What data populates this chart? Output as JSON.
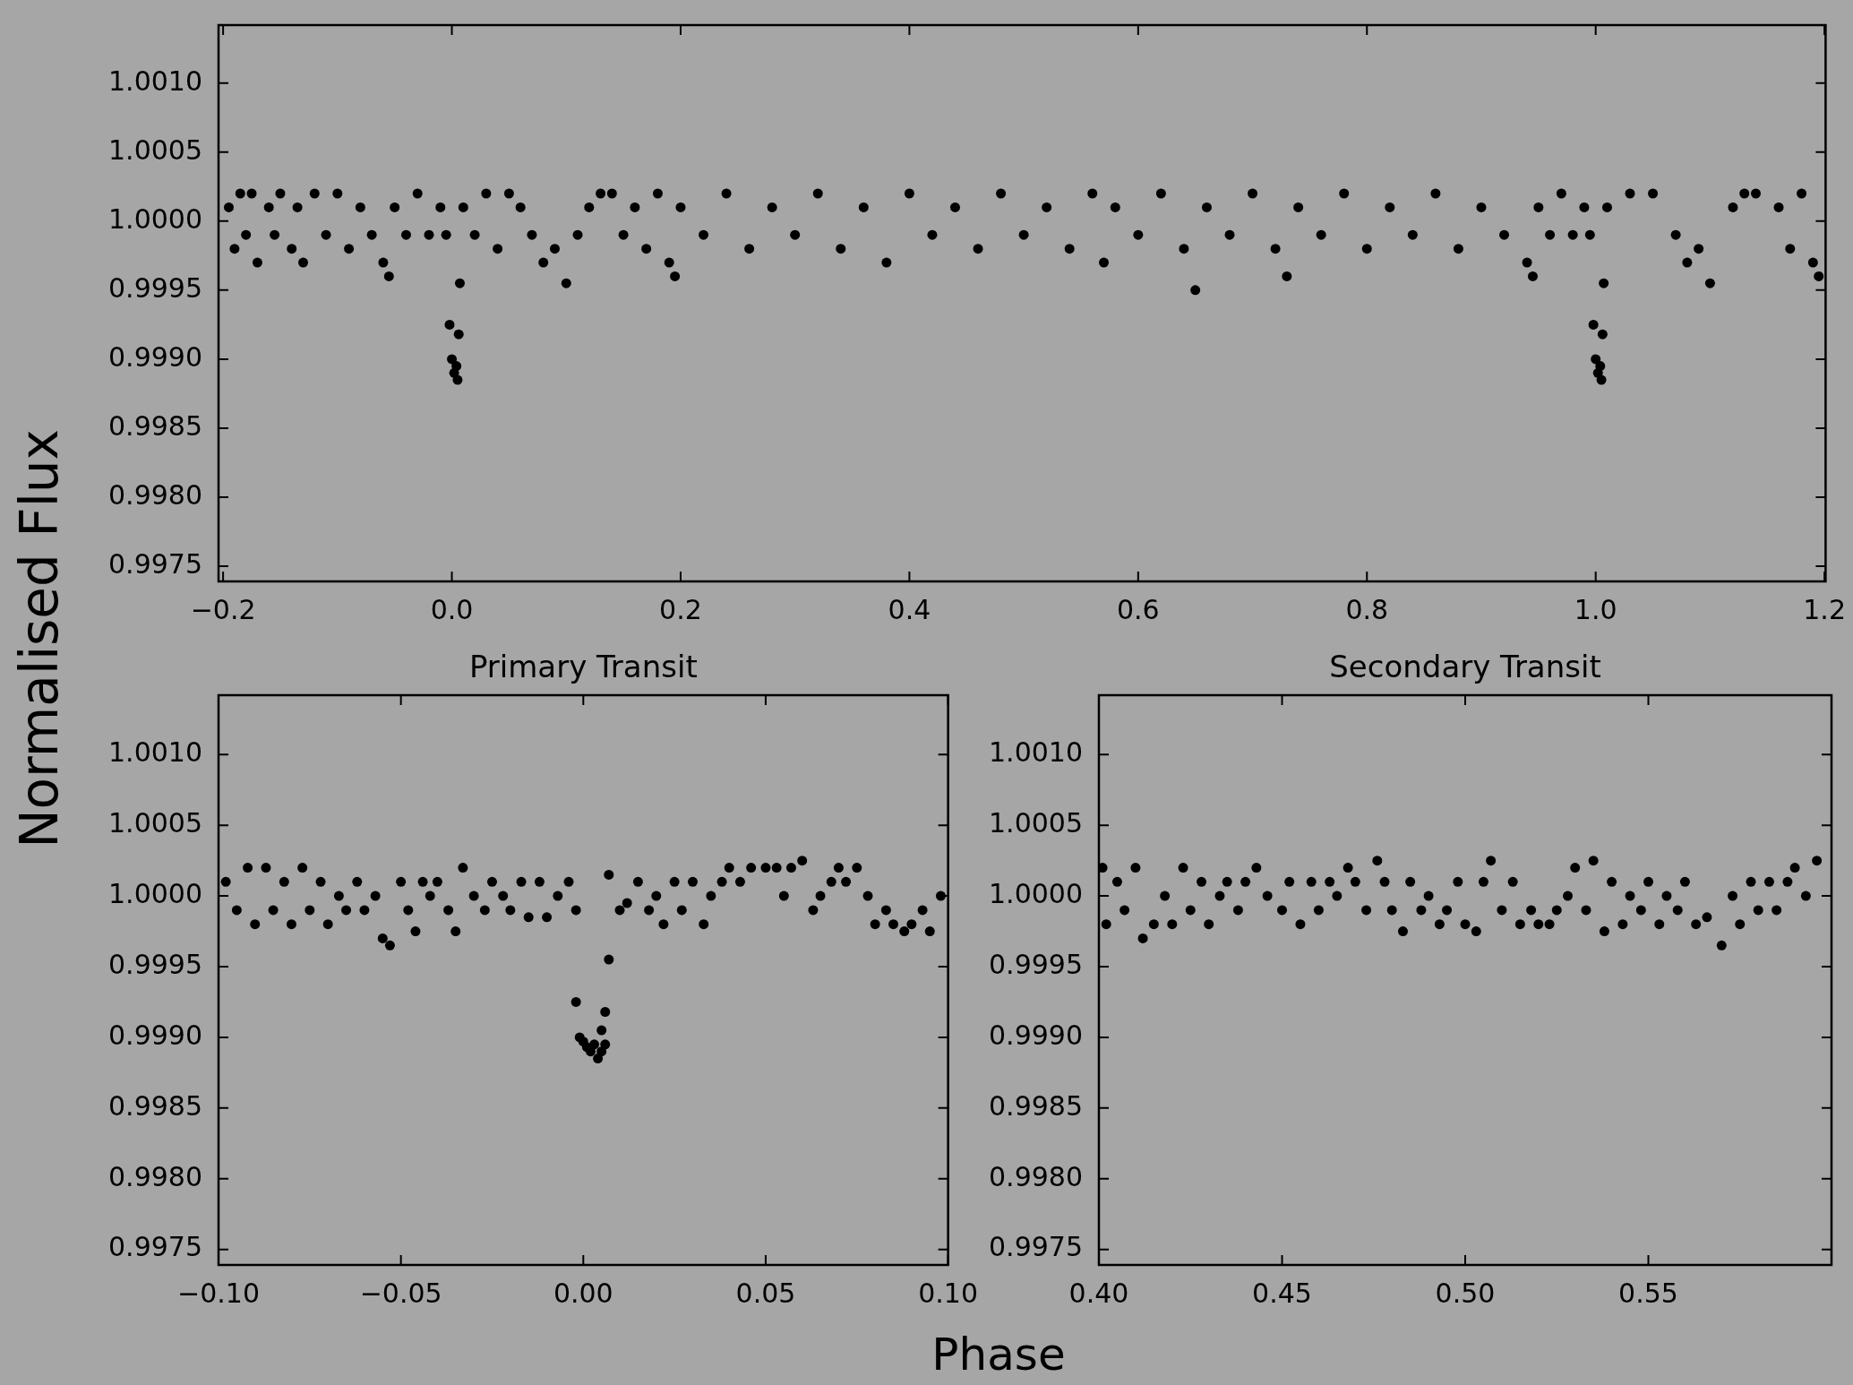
{
  "chart_data": [
    {
      "type": "scatter",
      "ylabel": "Normalised Flux",
      "color": "#000000",
      "marker": "circle",
      "grid": false,
      "xlim": [
        -0.204,
        1.201
      ],
      "ylim": [
        0.99739,
        1.00142
      ],
      "xticks": [
        {
          "value": -0.2,
          "label": "−0.2"
        },
        {
          "value": 0,
          "label": "0.0"
        },
        {
          "value": 0.2,
          "label": "0.2"
        },
        {
          "value": 0.4,
          "label": "0.4"
        },
        {
          "value": 0.6,
          "label": "0.6"
        },
        {
          "value": 0.8,
          "label": "0.8"
        },
        {
          "value": 1,
          "label": "1.0"
        },
        {
          "value": 1.2,
          "label": "1.2"
        }
      ],
      "yticks": [
        {
          "value": 0.9975,
          "label": "0.9975"
        },
        {
          "value": 0.998,
          "label": "0.9980"
        },
        {
          "value": 0.9985,
          "label": "0.9985"
        },
        {
          "value": 0.999,
          "label": "0.9990"
        },
        {
          "value": 0.9995,
          "label": "0.9995"
        },
        {
          "value": 1,
          "label": "1.0000"
        },
        {
          "value": 1.0005,
          "label": "1.0005"
        },
        {
          "value": 1.001,
          "label": "1.0010"
        }
      ],
      "x": [
        -0.195,
        -0.19,
        -0.185,
        -0.18,
        -0.175,
        -0.17,
        -0.16,
        -0.155,
        -0.15,
        -0.14,
        -0.135,
        -0.13,
        -0.12,
        -0.11,
        -0.1,
        -0.09,
        -0.08,
        -0.07,
        -0.06,
        -0.055,
        -0.05,
        -0.04,
        -0.03,
        -0.02,
        -0.01,
        -0.005,
        -0.002,
        0,
        0.002,
        0.004,
        0.005,
        0.006,
        0.007,
        0.01,
        0.02,
        0.03,
        0.04,
        0.05,
        0.06,
        0.07,
        0.08,
        0.09,
        0.1,
        0.11,
        0.12,
        0.13,
        0.14,
        0.15,
        0.16,
        0.17,
        0.18,
        0.19,
        0.195,
        0.2,
        0.22,
        0.24,
        0.26,
        0.28,
        0.3,
        0.32,
        0.34,
        0.36,
        0.38,
        0.4,
        0.42,
        0.44,
        0.46,
        0.48,
        0.5,
        0.52,
        0.54,
        0.56,
        0.57,
        0.58,
        0.6,
        0.62,
        0.64,
        0.65,
        0.66,
        0.68,
        0.7,
        0.72,
        0.73,
        0.74,
        0.76,
        0.78,
        0.8,
        0.82,
        0.84,
        0.86,
        0.88,
        0.9,
        0.92,
        0.94,
        0.945,
        0.95,
        0.96,
        0.97,
        0.98,
        0.99,
        0.995,
        0.998,
        1,
        1.002,
        1.004,
        1.005,
        1.006,
        1.007,
        1.01,
        1.03,
        1.05,
        1.07,
        1.08,
        1.09,
        1.1,
        1.12,
        1.13,
        1.14,
        1.16,
        1.17,
        1.18,
        1.19,
        1.195
      ],
      "values": [
        1.0001,
        0.9998,
        1.0002,
        0.9999,
        1.0002,
        0.9997,
        1.0001,
        0.9999,
        1.0002,
        0.9998,
        1.0001,
        0.9997,
        1.0002,
        0.9999,
        1.0002,
        0.9998,
        1.0001,
        0.9999,
        0.9997,
        0.9996,
        1.0001,
        0.9999,
        1.0002,
        0.9999,
        1.0001,
        0.9999,
        0.99925,
        0.999,
        0.9989,
        0.99895,
        0.99885,
        0.99918,
        0.99955,
        1.0001,
        0.9999,
        1.0002,
        0.9998,
        1.0002,
        1.0001,
        0.9999,
        0.9997,
        0.9998,
        0.99955,
        0.9999,
        1.0001,
        1.0002,
        1.0002,
        0.9999,
        1.0001,
        0.9998,
        1.0002,
        0.9997,
        0.9996,
        1.0001,
        0.9999,
        1.0002,
        0.9998,
        1.0001,
        0.9999,
        1.0002,
        0.9998,
        1.0001,
        0.9997,
        1.0002,
        0.9999,
        1.0001,
        0.9998,
        1.0002,
        0.9999,
        1.0001,
        0.9998,
        1.0002,
        0.9997,
        1.0001,
        0.9999,
        1.0002,
        0.9998,
        0.9995,
        1.0001,
        0.9999,
        1.0002,
        0.9998,
        0.9996,
        1.0001,
        0.9999,
        1.0002,
        0.9998,
        1.0001,
        0.9999,
        1.0002,
        0.9998,
        1.0001,
        0.9999,
        0.9997,
        0.9996,
        1.0001,
        0.9999,
        1.0002,
        0.9999,
        1.0001,
        0.9999,
        0.99925,
        0.999,
        0.9989,
        0.99895,
        0.99885,
        0.99918,
        0.99955,
        1.0001,
        1.0002,
        1.0002,
        0.9999,
        0.9997,
        0.9998,
        0.99955,
        1.0001,
        1.0002,
        1.0002,
        1.0001,
        0.9998,
        1.0002,
        0.9997,
        0.9996
      ]
    },
    {
      "type": "scatter",
      "title": "Primary Transit",
      "xlabel": "Phase",
      "color": "#000000",
      "marker": "circle",
      "grid": false,
      "xlim": [
        -0.1,
        0.1
      ],
      "ylim": [
        0.99739,
        1.00142
      ],
      "xticks": [
        {
          "value": -0.1,
          "label": "−0.10"
        },
        {
          "value": -0.05,
          "label": "−0.05"
        },
        {
          "value": 0,
          "label": "0.00"
        },
        {
          "value": 0.05,
          "label": "0.05"
        },
        {
          "value": 0.1,
          "label": "0.10"
        }
      ],
      "yticks": [
        {
          "value": 0.9975,
          "label": "0.9975"
        },
        {
          "value": 0.998,
          "label": "0.9980"
        },
        {
          "value": 0.9985,
          "label": "0.9985"
        },
        {
          "value": 0.999,
          "label": "0.9990"
        },
        {
          "value": 0.9995,
          "label": "0.9995"
        },
        {
          "value": 1,
          "label": "1.0000"
        },
        {
          "value": 1.0005,
          "label": "1.0005"
        },
        {
          "value": 1.001,
          "label": "1.0010"
        }
      ],
      "x": [
        -0.098,
        -0.095,
        -0.092,
        -0.09,
        -0.087,
        -0.085,
        -0.082,
        -0.08,
        -0.077,
        -0.075,
        -0.072,
        -0.07,
        -0.067,
        -0.065,
        -0.062,
        -0.06,
        -0.057,
        -0.055,
        -0.053,
        -0.05,
        -0.048,
        -0.046,
        -0.044,
        -0.042,
        -0.04,
        -0.037,
        -0.035,
        -0.033,
        -0.03,
        -0.027,
        -0.025,
        -0.022,
        -0.02,
        -0.017,
        -0.015,
        -0.012,
        -0.01,
        -0.007,
        -0.004,
        -0.002,
        -0.002,
        -0.001,
        0,
        0.001,
        0.002,
        0.003,
        0.004,
        0.005,
        0.005,
        0.006,
        0.006,
        0.007,
        0.007,
        0.01,
        0.012,
        0.015,
        0.018,
        0.02,
        0.022,
        0.025,
        0.027,
        0.03,
        0.033,
        0.035,
        0.038,
        0.04,
        0.043,
        0.046,
        0.05,
        0.053,
        0.055,
        0.057,
        0.06,
        0.063,
        0.065,
        0.068,
        0.07,
        0.072,
        0.075,
        0.078,
        0.08,
        0.083,
        0.085,
        0.088,
        0.09,
        0.093,
        0.095,
        0.098
      ],
      "values": [
        1.0001,
        0.9999,
        1.0002,
        0.9998,
        1.0002,
        0.9999,
        1.0001,
        0.9998,
        1.0002,
        0.9999,
        1.0001,
        0.9998,
        1,
        0.9999,
        1.0001,
        0.9999,
        1,
        0.9997,
        0.99965,
        1.0001,
        0.9999,
        0.99975,
        1.0001,
        1,
        1.0001,
        0.9999,
        0.99975,
        1.0002,
        1,
        0.9999,
        1.0001,
        1,
        0.9999,
        1.0001,
        0.99985,
        1.0001,
        0.99985,
        1,
        1.0001,
        0.9999,
        0.99925,
        0.999,
        0.99897,
        0.99893,
        0.9989,
        0.99895,
        0.99885,
        0.9989,
        0.99905,
        0.99918,
        0.99895,
        0.99955,
        1.00015,
        0.9999,
        0.99995,
        1.0001,
        0.9999,
        1,
        0.9998,
        1.0001,
        0.9999,
        1.0001,
        0.9998,
        1,
        1.0001,
        1.0002,
        1.0001,
        1.0002,
        1.0002,
        1.0002,
        1,
        1.0002,
        1.00025,
        0.9999,
        1,
        1.0001,
        1.0002,
        1.0001,
        1.0002,
        1,
        0.9998,
        0.9999,
        0.9998,
        0.99975,
        0.9998,
        0.9999,
        0.99975,
        1
      ]
    },
    {
      "type": "scatter",
      "title": "Secondary Transit",
      "color": "#000000",
      "marker": "circle",
      "grid": false,
      "xlim": [
        0.4,
        0.6
      ],
      "ylim": [
        0.99739,
        1.00142
      ],
      "xticks": [
        {
          "value": 0.4,
          "label": "0.40"
        },
        {
          "value": 0.45,
          "label": "0.45"
        },
        {
          "value": 0.5,
          "label": "0.50"
        },
        {
          "value": 0.55,
          "label": "0.55"
        }
      ],
      "yticks": [
        {
          "value": 0.9975,
          "label": "0.9975"
        },
        {
          "value": 0.998,
          "label": "0.9980"
        },
        {
          "value": 0.9985,
          "label": "0.9985"
        },
        {
          "value": 0.999,
          "label": "0.9990"
        },
        {
          "value": 0.9995,
          "label": "0.9995"
        },
        {
          "value": 1,
          "label": "1.0000"
        },
        {
          "value": 1.0005,
          "label": "1.0005"
        },
        {
          "value": 1.001,
          "label": "1.0010"
        }
      ],
      "x": [
        0.401,
        0.402,
        0.405,
        0.407,
        0.41,
        0.412,
        0.415,
        0.418,
        0.42,
        0.423,
        0.425,
        0.428,
        0.43,
        0.433,
        0.435,
        0.438,
        0.44,
        0.443,
        0.446,
        0.45,
        0.452,
        0.455,
        0.458,
        0.46,
        0.463,
        0.465,
        0.468,
        0.47,
        0.473,
        0.476,
        0.478,
        0.48,
        0.483,
        0.485,
        0.488,
        0.49,
        0.493,
        0.495,
        0.498,
        0.5,
        0.503,
        0.505,
        0.507,
        0.51,
        0.513,
        0.515,
        0.518,
        0.52,
        0.523,
        0.525,
        0.528,
        0.53,
        0.533,
        0.535,
        0.538,
        0.54,
        0.543,
        0.545,
        0.548,
        0.55,
        0.553,
        0.555,
        0.558,
        0.56,
        0.563,
        0.566,
        0.57,
        0.573,
        0.575,
        0.578,
        0.58,
        0.583,
        0.585,
        0.588,
        0.59,
        0.593,
        0.596
      ],
      "values": [
        1.0002,
        0.9998,
        1.0001,
        0.9999,
        1.0002,
        0.9997,
        0.9998,
        1,
        0.9998,
        1.0002,
        0.9999,
        1.0001,
        0.9998,
        1,
        1.0001,
        0.9999,
        1.0001,
        1.0002,
        1,
        0.9999,
        1.0001,
        0.9998,
        1.0001,
        0.9999,
        1.0001,
        1,
        1.0002,
        1.0001,
        0.9999,
        1.00025,
        1.0001,
        0.9999,
        0.99975,
        1.0001,
        0.9999,
        1,
        0.9998,
        0.9999,
        1.0001,
        0.9998,
        0.99975,
        1.0001,
        1.00025,
        0.9999,
        1.0001,
        0.9998,
        0.9999,
        0.9998,
        0.9998,
        0.9999,
        1,
        1.0002,
        0.9999,
        1.00025,
        0.99975,
        1.0001,
        0.9998,
        1,
        0.9999,
        1.0001,
        0.9998,
        1,
        0.9999,
        1.0001,
        0.9998,
        0.99985,
        0.99965,
        1,
        0.9998,
        1.0001,
        0.9999,
        1.0001,
        0.9999,
        1.0001,
        1.0002,
        1,
        1.00025
      ]
    }
  ]
}
